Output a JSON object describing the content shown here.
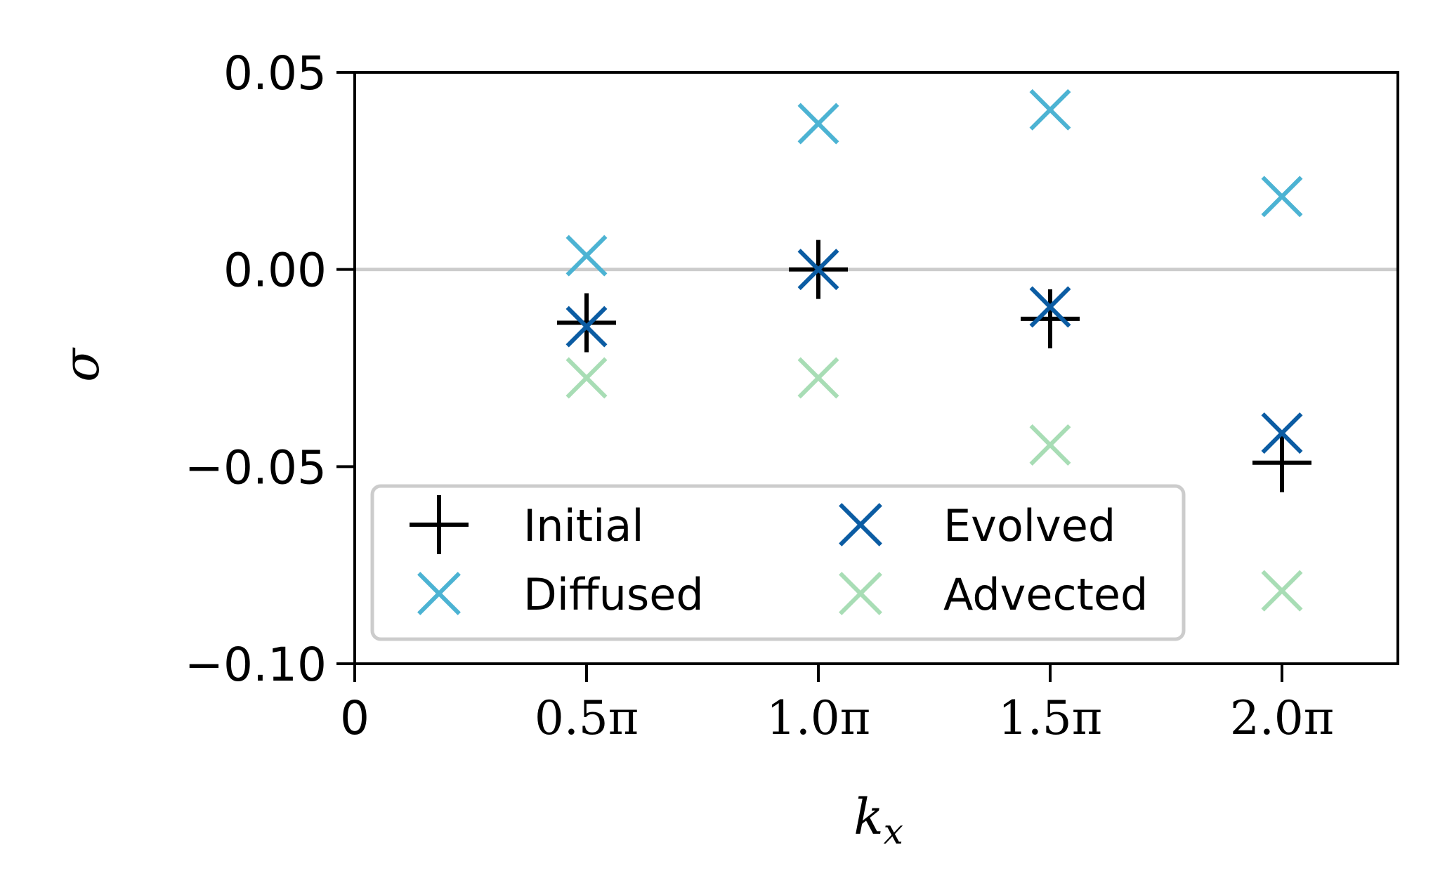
{
  "chart_data": {
    "type": "scatter",
    "xlabel": "k",
    "xlabel_sub": "x",
    "ylabel": "σ",
    "x_tick_labels": [
      "0",
      "0.5π",
      "1.0π",
      "1.5π",
      "2.0π"
    ],
    "x_tick_values": [
      0,
      0.5,
      1.0,
      1.5,
      2.0
    ],
    "y_tick_labels": [
      "0.05",
      "0.00",
      "−0.05",
      "−0.10"
    ],
    "y_tick_values": [
      0.05,
      0.0,
      -0.05,
      -0.1
    ],
    "xlim": [
      0,
      2.25
    ],
    "ylim": [
      -0.1,
      0.05
    ],
    "x_unit": "π",
    "reference_line": {
      "y": 0.0,
      "color": "#cccccc"
    },
    "grid": false,
    "legend_placement": "lower-left",
    "legend_columns": 2,
    "series": [
      {
        "name": "Initial",
        "marker": "plus",
        "color": "#000000",
        "x": [
          0.5,
          1.0,
          1.5,
          2.0
        ],
        "y": [
          -0.0135,
          0.0,
          -0.0125,
          -0.049
        ]
      },
      {
        "name": "Evolved",
        "marker": "x",
        "color": "#0b5ca3",
        "x": [
          0.5,
          1.0,
          1.5,
          2.0
        ],
        "y": [
          -0.0145,
          0.0,
          -0.0095,
          -0.0415
        ]
      },
      {
        "name": "Diffused",
        "marker": "x",
        "color": "#4cb3d3",
        "x": [
          0.5,
          1.0,
          1.5,
          2.0
        ],
        "y": [
          0.0035,
          0.037,
          0.0405,
          0.0185
        ]
      },
      {
        "name": "Advected",
        "marker": "x",
        "color": "#a8ddb5",
        "x": [
          0.5,
          1.0,
          1.5,
          2.0
        ],
        "y": [
          -0.0275,
          -0.0275,
          -0.0445,
          -0.0815
        ]
      }
    ]
  }
}
